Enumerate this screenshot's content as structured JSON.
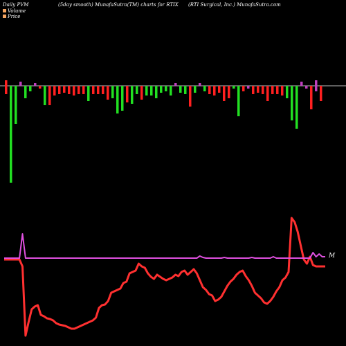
{
  "header": {
    "left": "Daily PVM",
    "center": "(5day smooth) MunafaSutra(TM) charts for RTIX",
    "right": "(RTI Surgical, Inc.) MunafaSutra.com"
  },
  "legend": [
    {
      "label": "Volume",
      "color": "#f4a460"
    },
    {
      "label": "Price",
      "color": "#f4a460"
    }
  ],
  "end_label": "M",
  "chart_data": {
    "type": "bar",
    "title": "Daily PVM",
    "colors": {
      "up": "#22e022",
      "down": "#ff2020",
      "purple": "#c040c0",
      "price": "#ff3030",
      "baseline": "#bbbbbb",
      "pvm_line": "#e050e0"
    },
    "bars": [
      {
        "v": 8,
        "d": 12,
        "c": "r"
      },
      {
        "v": 0,
        "d": 140,
        "c": "g"
      },
      {
        "v": 0,
        "d": 55,
        "c": "g"
      },
      {
        "v": 6,
        "d": 0,
        "c": "p"
      },
      {
        "v": 0,
        "d": 18,
        "c": "g"
      },
      {
        "v": 0,
        "d": 8,
        "c": "g"
      },
      {
        "v": 4,
        "d": 0,
        "c": "p"
      },
      {
        "v": 0,
        "d": 4,
        "c": "r"
      },
      {
        "v": 0,
        "d": 28,
        "c": "g"
      },
      {
        "v": 0,
        "d": 28,
        "c": "r"
      },
      {
        "v": 0,
        "d": 14,
        "c": "r"
      },
      {
        "v": 0,
        "d": 12,
        "c": "r"
      },
      {
        "v": 0,
        "d": 10,
        "c": "r"
      },
      {
        "v": 0,
        "d": 12,
        "c": "r"
      },
      {
        "v": 0,
        "d": 14,
        "c": "r"
      },
      {
        "v": 0,
        "d": 12,
        "c": "r"
      },
      {
        "v": 0,
        "d": 12,
        "c": "r"
      },
      {
        "v": 0,
        "d": 22,
        "c": "g"
      },
      {
        "v": 0,
        "d": 12,
        "c": "r"
      },
      {
        "v": 0,
        "d": 12,
        "c": "r"
      },
      {
        "v": 0,
        "d": 12,
        "c": "r"
      },
      {
        "v": 0,
        "d": 20,
        "c": "r"
      },
      {
        "v": 0,
        "d": 18,
        "c": "g"
      },
      {
        "v": 0,
        "d": 40,
        "c": "g"
      },
      {
        "v": 0,
        "d": 36,
        "c": "g"
      },
      {
        "v": 0,
        "d": 24,
        "c": "r"
      },
      {
        "v": 0,
        "d": 26,
        "c": "g"
      },
      {
        "v": 0,
        "d": 12,
        "c": "g"
      },
      {
        "v": 0,
        "d": 20,
        "c": "r"
      },
      {
        "v": 0,
        "d": 14,
        "c": "g"
      },
      {
        "v": 0,
        "d": 14,
        "c": "g"
      },
      {
        "v": 0,
        "d": 18,
        "c": "g"
      },
      {
        "v": 0,
        "d": 10,
        "c": "g"
      },
      {
        "v": 0,
        "d": 8,
        "c": "g"
      },
      {
        "v": 0,
        "d": 14,
        "c": "g"
      },
      {
        "v": 4,
        "d": 0,
        "c": "p"
      },
      {
        "v": 0,
        "d": 10,
        "c": "g"
      },
      {
        "v": 0,
        "d": 12,
        "c": "g"
      },
      {
        "v": 0,
        "d": 30,
        "c": "r"
      },
      {
        "v": 0,
        "d": 10,
        "c": "g"
      },
      {
        "v": 4,
        "d": 0,
        "c": "p"
      },
      {
        "v": 0,
        "d": 8,
        "c": "g"
      },
      {
        "v": 0,
        "d": 12,
        "c": "r"
      },
      {
        "v": 0,
        "d": 14,
        "c": "r"
      },
      {
        "v": 0,
        "d": 10,
        "c": "r"
      },
      {
        "v": 0,
        "d": 22,
        "c": "r"
      },
      {
        "v": 0,
        "d": 18,
        "c": "r"
      },
      {
        "v": 0,
        "d": 4,
        "c": "g"
      },
      {
        "v": 0,
        "d": 44,
        "c": "g"
      },
      {
        "v": 0,
        "d": 8,
        "c": "r"
      },
      {
        "v": 0,
        "d": 4,
        "c": "p"
      },
      {
        "v": 0,
        "d": 12,
        "c": "r"
      },
      {
        "v": 0,
        "d": 10,
        "c": "r"
      },
      {
        "v": 0,
        "d": 12,
        "c": "r"
      },
      {
        "v": 0,
        "d": 22,
        "c": "r"
      },
      {
        "v": 0,
        "d": 12,
        "c": "r"
      },
      {
        "v": 0,
        "d": 12,
        "c": "r"
      },
      {
        "v": 0,
        "d": 14,
        "c": "r"
      },
      {
        "v": 0,
        "d": 18,
        "c": "g"
      },
      {
        "v": 0,
        "d": 50,
        "c": "g"
      },
      {
        "v": 0,
        "d": 62,
        "c": "g"
      },
      {
        "v": 6,
        "d": 0,
        "c": "p"
      },
      {
        "v": 0,
        "d": 4,
        "c": "p"
      },
      {
        "v": 0,
        "d": 34,
        "c": "r"
      },
      {
        "v": 8,
        "d": 8,
        "c": "p"
      },
      {
        "v": 0,
        "d": 22,
        "c": "r"
      }
    ],
    "pvm_line": [
      10,
      10,
      10,
      10,
      10,
      10,
      45,
      10,
      10,
      10,
      10,
      10,
      10,
      10,
      10,
      10,
      10,
      10,
      10,
      10,
      10,
      10,
      10,
      10,
      10,
      10,
      10,
      10,
      10,
      10,
      10,
      10,
      10,
      10,
      10,
      10,
      10,
      10,
      10,
      10,
      10,
      10,
      10,
      10,
      10,
      10,
      10,
      10,
      10,
      10,
      10,
      10,
      10,
      10,
      10,
      10,
      10,
      10,
      10,
      10,
      10,
      10,
      10,
      10,
      13,
      11,
      10,
      10,
      10,
      10,
      10,
      10,
      11,
      10,
      10,
      10,
      10,
      10,
      10,
      10,
      10,
      11,
      10,
      10,
      10,
      10,
      10,
      10,
      12,
      10,
      10,
      10,
      10,
      10,
      10,
      10,
      10,
      10,
      10,
      10,
      10,
      18,
      12,
      16,
      12,
      12
    ],
    "price_line": [
      10,
      10,
      10,
      10,
      10,
      10,
      0,
      -100,
      -80,
      -62,
      -58,
      -56,
      -70,
      -72,
      -75,
      -76,
      -78,
      -82,
      -84,
      -85,
      -86,
      -88,
      -90,
      -90,
      -88,
      -86,
      -84,
      -82,
      -80,
      -78,
      -74,
      -60,
      -56,
      -55,
      -50,
      -38,
      -36,
      -34,
      -32,
      -24,
      -22,
      -10,
      -8,
      -6,
      4,
      0,
      -2,
      -10,
      -15,
      -18,
      -12,
      -15,
      -18,
      -20,
      -18,
      -16,
      -12,
      -14,
      -8,
      -6,
      -12,
      -8,
      -4,
      -10,
      -20,
      -30,
      -34,
      -40,
      -42,
      -50,
      -48,
      -44,
      -36,
      -28,
      -22,
      -18,
      -12,
      -8,
      -6,
      -14,
      -20,
      -28,
      -38,
      -42,
      -46,
      -52,
      -54,
      -50,
      -44,
      -36,
      -30,
      -20,
      -16,
      -8,
      70,
      64,
      50,
      30,
      10,
      4,
      14,
      2,
      0,
      0,
      0,
      0
    ]
  }
}
